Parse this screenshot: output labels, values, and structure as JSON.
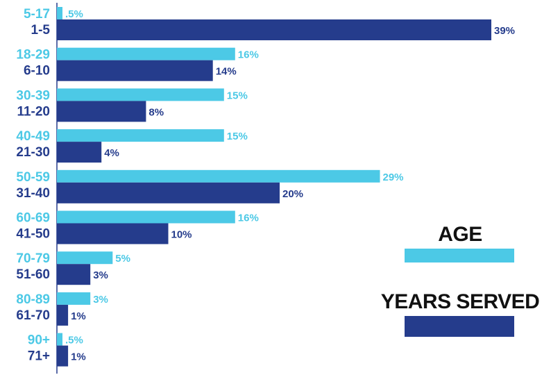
{
  "chart_data": {
    "type": "bar",
    "orientation": "horizontal",
    "grouping": "paired",
    "x_max": 39,
    "series": [
      {
        "name": "AGE",
        "color": "#4CC9E6",
        "categories": [
          "5-17",
          "18-29",
          "30-39",
          "40-49",
          "50-59",
          "60-69",
          "70-79",
          "80-89",
          "90+"
        ],
        "values": [
          0.5,
          16,
          15,
          15,
          29,
          16,
          5,
          3,
          0.5
        ],
        "value_labels": [
          ".5%",
          "16%",
          "15%",
          "15%",
          "29%",
          "16%",
          "5%",
          "3%",
          ".5%"
        ]
      },
      {
        "name": "YEARS SERVED",
        "color": "#253C8C",
        "categories": [
          "1-5",
          "6-10",
          "11-20",
          "21-30",
          "31-40",
          "41-50",
          "51-60",
          "61-70",
          "71+"
        ],
        "values": [
          39,
          14,
          8,
          4,
          20,
          10,
          3,
          1,
          1
        ],
        "value_labels": [
          "39%",
          "14%",
          "8%",
          "4%",
          "20%",
          "10%",
          "3%",
          "1%",
          "1%"
        ]
      }
    ],
    "legend": {
      "position": "bottom-right",
      "items": [
        "AGE",
        "YEARS SERVED"
      ]
    }
  }
}
